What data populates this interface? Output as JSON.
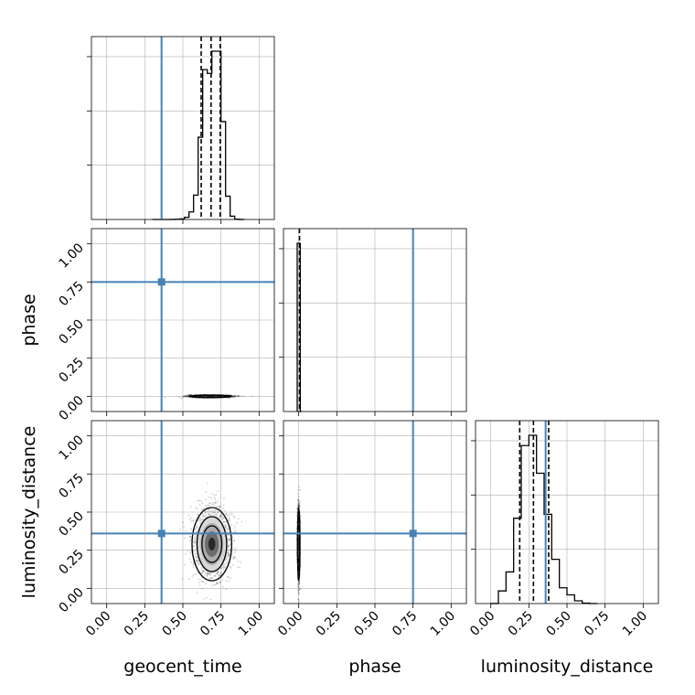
{
  "chart_data": {
    "type": "corner",
    "parameters": [
      "geocent_time",
      "phase",
      "luminosity_distance"
    ],
    "axis_range": [
      -0.1,
      1.1
    ],
    "tick_labels": [
      "0.00",
      "0.25",
      "0.50",
      "0.75",
      "1.00"
    ],
    "grid": true,
    "colors": {
      "truth": "#4682b4",
      "hist": "#000000",
      "grid": "#b0b0b0"
    },
    "truth_values": {
      "geocent_time": 0.36,
      "phase": 0.75,
      "luminosity_distance": 0.36
    },
    "histograms": {
      "geocent_time": {
        "bin_edges": [
          0.3,
          0.33,
          0.36,
          0.39,
          0.42,
          0.45,
          0.48,
          0.51,
          0.54,
          0.57,
          0.6,
          0.63,
          0.66,
          0.69,
          0.72,
          0.75,
          0.78,
          0.81,
          0.84,
          0.87,
          0.9
        ],
        "counts": [
          0,
          0,
          0,
          0.5,
          1,
          3,
          11,
          40,
          140,
          450,
          1520,
          2770,
          2700,
          3110,
          3110,
          1810,
          430,
          60,
          5,
          1
        ]
      },
      "phase": {
        "bin_edges": [
          -0.01,
          0.0,
          0.01,
          0.02
        ],
        "counts": [
          1.0,
          1.0,
          0
        ]
      },
      "luminosity_distance": {
        "bin_edges": [
          0.0,
          0.05,
          0.1,
          0.15,
          0.2,
          0.25,
          0.3,
          0.35,
          0.4,
          0.45,
          0.5,
          0.55,
          0.6,
          0.65,
          0.7
        ],
        "counts": [
          1,
          160,
          400,
          1080,
          2000,
          2130,
          1650,
          1130,
          560,
          200,
          110,
          35,
          5,
          0
        ]
      }
    },
    "quantiles": {
      "geocent_time": [
        0.62,
        0.685,
        0.745
      ],
      "phase": [
        0.005
      ],
      "luminosity_distance": [
        0.19,
        0.28,
        0.38
      ]
    },
    "posterior_2d": {
      "geocent_time_vs_phase": {
        "mean": [
          0.68,
          0.0
        ],
        "sd": [
          0.07,
          0.004
        ]
      },
      "geocent_time_vs_luminosity_distance": {
        "mean": [
          0.69,
          0.29
        ],
        "sd": [
          0.065,
          0.12
        ]
      },
      "phase_vs_luminosity_distance": {
        "mean": [
          0.0,
          0.29
        ],
        "sd": [
          0.004,
          0.12
        ]
      }
    }
  }
}
